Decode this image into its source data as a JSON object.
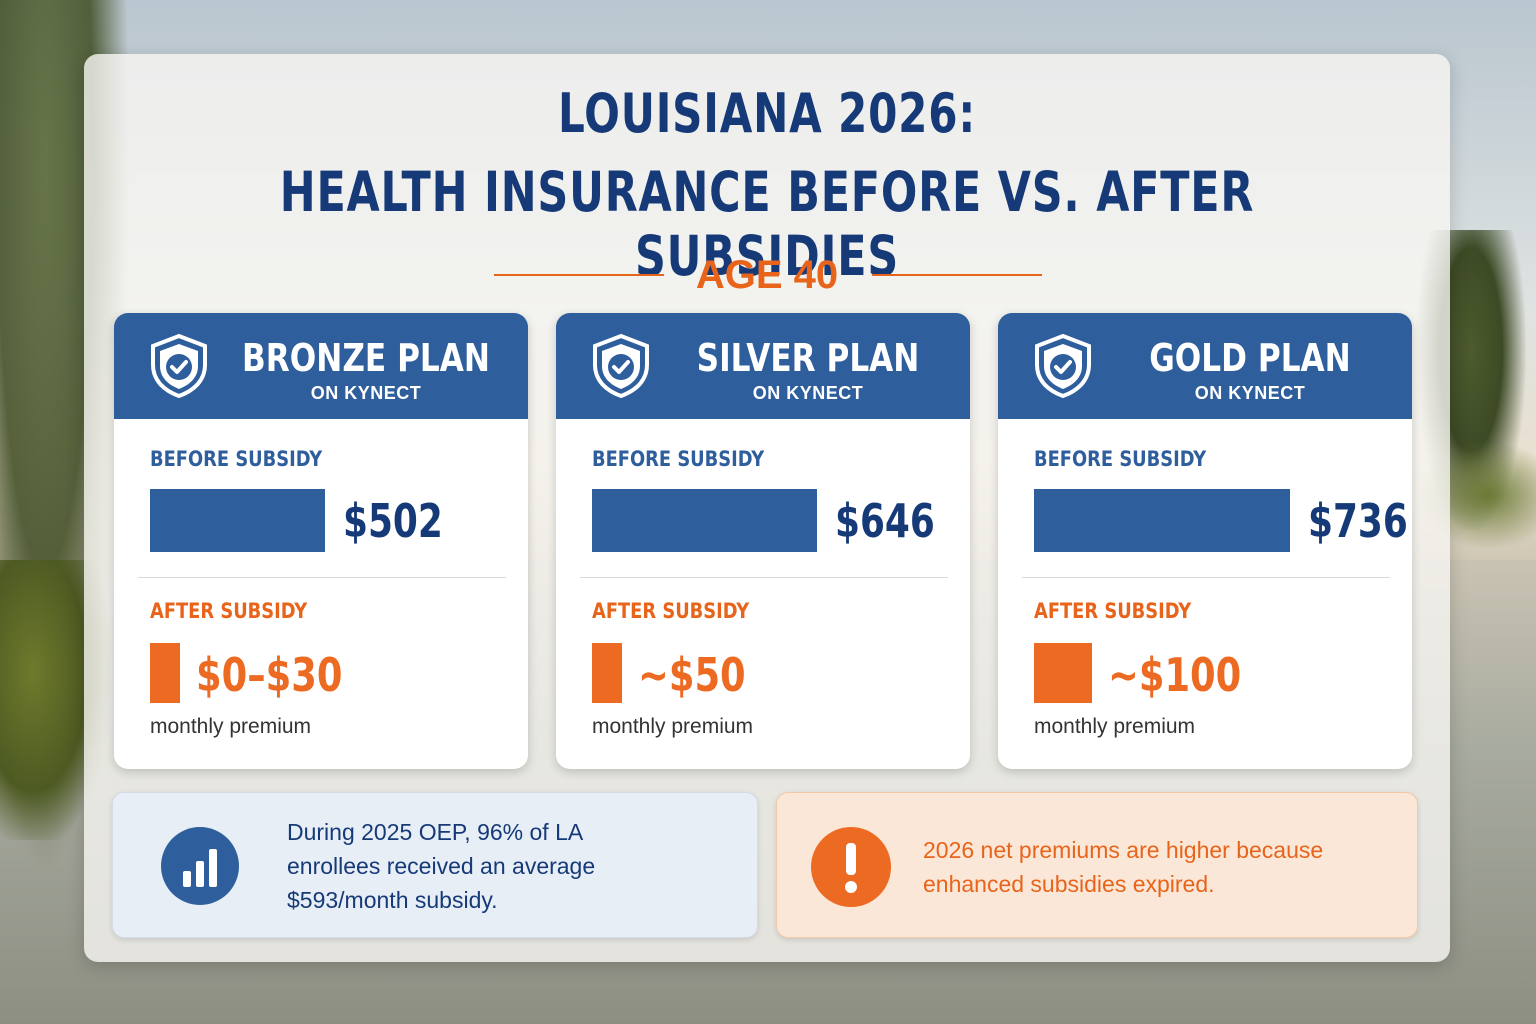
{
  "title_line1": "LOUISIANA 2026:",
  "title_line2": "HEALTH INSURANCE BEFORE VS. AFTER SUBSIDIES",
  "subtitle": "AGE 40",
  "colors": {
    "navy": "#163a78",
    "plan_blue": "#2f5e9c",
    "orange": "#ec6a22",
    "panel": "#f8f6f2"
  },
  "cards": [
    {
      "plan": "BRONZE PLAN",
      "platform": "ON KYNECT",
      "before_label": "BEFORE SUBSIDY",
      "before_value": "$502",
      "after_label": "AFTER SUBSIDY",
      "after_value": "$0–$30",
      "note": "monthly premium",
      "icon": "shield-check-icon"
    },
    {
      "plan": "SILVER PLAN",
      "platform": "ON KYNECT",
      "before_label": "BEFORE SUBSIDY",
      "before_value": "$646",
      "after_label": "AFTER SUBSIDY",
      "after_value": "~$50",
      "note": "monthly premium",
      "icon": "shield-check-icon"
    },
    {
      "plan": "GOLD PLAN",
      "platform": "ON KYNECT",
      "before_label": "BEFORE SUBSIDY",
      "before_value": "$736",
      "after_label": "AFTER SUBSIDY",
      "after_value": "~$100",
      "note": "monthly premium",
      "icon": "shield-check-icon"
    }
  ],
  "info": {
    "text": "During 2025 OEP, 96% of LA enrollees received an average $593/month subsidy.",
    "icon": "bar-chart-icon"
  },
  "warning": {
    "text": "2026 net premiums are higher because enhanced subsidies expired.",
    "icon": "exclamation-icon"
  },
  "chart_data": {
    "type": "bar",
    "categories": [
      "BRONZE PLAN",
      "SILVER PLAN",
      "GOLD PLAN"
    ],
    "series": [
      {
        "name": "BEFORE SUBSIDY",
        "values": [
          502,
          646,
          736
        ]
      },
      {
        "name": "AFTER SUBSIDY",
        "values": [
          30,
          50,
          100
        ]
      }
    ],
    "title": "LOUISIANA 2026: HEALTH INSURANCE BEFORE VS. AFTER SUBSIDIES",
    "subtitle": "AGE 40",
    "ylabel": "monthly premium"
  }
}
